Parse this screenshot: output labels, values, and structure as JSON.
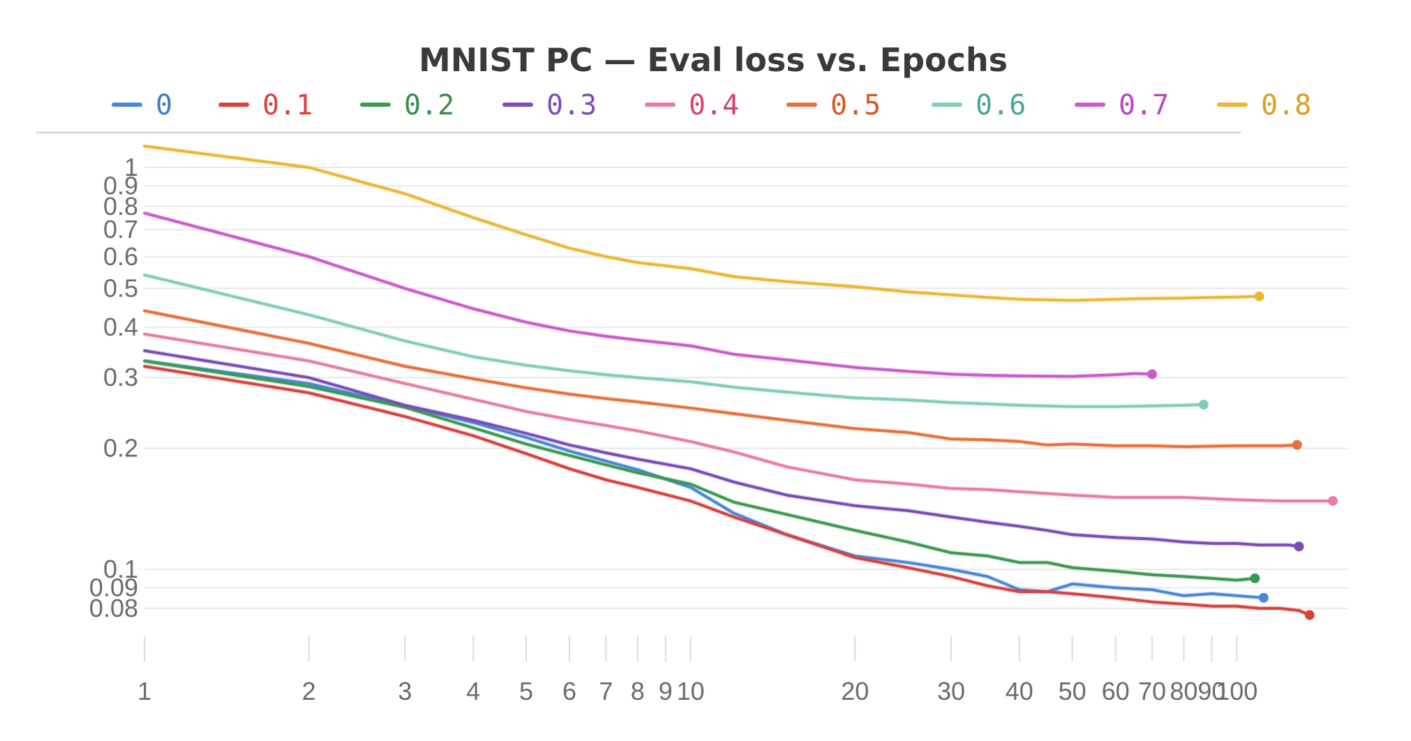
{
  "chart_data": {
    "type": "line",
    "title": "MNIST PC — Eval loss vs. Epochs",
    "xlabel": "",
    "ylabel": "",
    "x_scale": "log",
    "y_scale": "log",
    "xlim": [
      1,
      160
    ],
    "ylim": [
      0.066,
      1.15
    ],
    "legend_position": "top",
    "grid": true,
    "x_ticks": [
      {
        "value": 1,
        "label": "1"
      },
      {
        "value": 2,
        "label": "2"
      },
      {
        "value": 3,
        "label": "3"
      },
      {
        "value": 4,
        "label": "4"
      },
      {
        "value": 5,
        "label": "5"
      },
      {
        "value": 6,
        "label": "6"
      },
      {
        "value": 7,
        "label": "7"
      },
      {
        "value": 8,
        "label": "8"
      },
      {
        "value": 9,
        "label": "9"
      },
      {
        "value": 10,
        "label": "10"
      },
      {
        "value": 20,
        "label": "20"
      },
      {
        "value": 30,
        "label": "30"
      },
      {
        "value": 40,
        "label": "40"
      },
      {
        "value": 50,
        "label": "50"
      },
      {
        "value": 60,
        "label": "60"
      },
      {
        "value": 70,
        "label": "70"
      },
      {
        "value": 80,
        "label": "80"
      },
      {
        "value": 90,
        "label": "90"
      },
      {
        "value": 100,
        "label": "100"
      }
    ],
    "y_ticks": [
      {
        "value": 0.08,
        "label": "0.08"
      },
      {
        "value": 0.09,
        "label": "0.09"
      },
      {
        "value": 0.1,
        "label": "0.1"
      },
      {
        "value": 0.2,
        "label": "0.2"
      },
      {
        "value": 0.3,
        "label": "0.3"
      },
      {
        "value": 0.4,
        "label": "0.4"
      },
      {
        "value": 0.5,
        "label": "0.5"
      },
      {
        "value": 0.6,
        "label": "0.6"
      },
      {
        "value": 0.7,
        "label": "0.7"
      },
      {
        "value": 0.8,
        "label": "0.8"
      },
      {
        "value": 0.9,
        "label": "0.9"
      },
      {
        "value": 1,
        "label": "1"
      }
    ],
    "series": [
      {
        "name": "0",
        "color": "#4a86d9",
        "label_color": "#3f7ad0",
        "points": [
          [
            1,
            0.33
          ],
          [
            2,
            0.29
          ],
          [
            3,
            0.255
          ],
          [
            4,
            0.232
          ],
          [
            5,
            0.213
          ],
          [
            6,
            0.197
          ],
          [
            7,
            0.186
          ],
          [
            8,
            0.177
          ],
          [
            10,
            0.16
          ],
          [
            12,
            0.138
          ],
          [
            15,
            0.122
          ],
          [
            20,
            0.108
          ],
          [
            25,
            0.104
          ],
          [
            30,
            0.1
          ],
          [
            35,
            0.096
          ],
          [
            40,
            0.089
          ],
          [
            45,
            0.088
          ],
          [
            50,
            0.092
          ],
          [
            60,
            0.09
          ],
          [
            70,
            0.089
          ],
          [
            80,
            0.086
          ],
          [
            90,
            0.087
          ],
          [
            100,
            0.086
          ],
          [
            112,
            0.085
          ]
        ]
      },
      {
        "name": "0.1",
        "color": "#d9413f",
        "label_color": "#d9413f",
        "points": [
          [
            1,
            0.32
          ],
          [
            2,
            0.275
          ],
          [
            3,
            0.24
          ],
          [
            4,
            0.215
          ],
          [
            5,
            0.194
          ],
          [
            6,
            0.178
          ],
          [
            7,
            0.167
          ],
          [
            8,
            0.16
          ],
          [
            10,
            0.148
          ],
          [
            12,
            0.135
          ],
          [
            15,
            0.122
          ],
          [
            20,
            0.107
          ],
          [
            25,
            0.101
          ],
          [
            30,
            0.096
          ],
          [
            35,
            0.091
          ],
          [
            40,
            0.088
          ],
          [
            45,
            0.088
          ],
          [
            50,
            0.087
          ],
          [
            60,
            0.085
          ],
          [
            70,
            0.083
          ],
          [
            80,
            0.082
          ],
          [
            90,
            0.081
          ],
          [
            100,
            0.081
          ],
          [
            110,
            0.08
          ],
          [
            120,
            0.08
          ],
          [
            130,
            0.079
          ],
          [
            136,
            0.077
          ]
        ]
      },
      {
        "name": "0.2",
        "color": "#3a9a52",
        "label_color": "#3a8a4c",
        "points": [
          [
            1,
            0.33
          ],
          [
            2,
            0.285
          ],
          [
            3,
            0.253
          ],
          [
            4,
            0.225
          ],
          [
            5,
            0.205
          ],
          [
            6,
            0.192
          ],
          [
            7,
            0.182
          ],
          [
            8,
            0.174
          ],
          [
            10,
            0.163
          ],
          [
            12,
            0.147
          ],
          [
            15,
            0.137
          ],
          [
            20,
            0.125
          ],
          [
            25,
            0.117
          ],
          [
            30,
            0.11
          ],
          [
            35,
            0.108
          ],
          [
            40,
            0.104
          ],
          [
            45,
            0.104
          ],
          [
            50,
            0.101
          ],
          [
            60,
            0.099
          ],
          [
            70,
            0.097
          ],
          [
            80,
            0.096
          ],
          [
            90,
            0.095
          ],
          [
            100,
            0.094
          ],
          [
            108,
            0.095
          ]
        ]
      },
      {
        "name": "0.3",
        "color": "#7b4cb8",
        "label_color": "#7b4cb8",
        "points": [
          [
            1,
            0.35
          ],
          [
            2,
            0.3
          ],
          [
            3,
            0.256
          ],
          [
            4,
            0.235
          ],
          [
            5,
            0.218
          ],
          [
            6,
            0.204
          ],
          [
            7,
            0.195
          ],
          [
            8,
            0.188
          ],
          [
            10,
            0.178
          ],
          [
            12,
            0.165
          ],
          [
            15,
            0.153
          ],
          [
            20,
            0.144
          ],
          [
            25,
            0.14
          ],
          [
            30,
            0.135
          ],
          [
            35,
            0.131
          ],
          [
            40,
            0.128
          ],
          [
            45,
            0.125
          ],
          [
            50,
            0.122
          ],
          [
            60,
            0.12
          ],
          [
            70,
            0.119
          ],
          [
            80,
            0.117
          ],
          [
            90,
            0.116
          ],
          [
            100,
            0.116
          ],
          [
            110,
            0.115
          ],
          [
            125,
            0.115
          ],
          [
            130,
            0.114
          ]
        ]
      },
      {
        "name": "0.4",
        "color": "#e87da0",
        "label_color": "#d6416b",
        "points": [
          [
            1,
            0.385
          ],
          [
            2,
            0.33
          ],
          [
            3,
            0.29
          ],
          [
            4,
            0.265
          ],
          [
            5,
            0.247
          ],
          [
            6,
            0.236
          ],
          [
            7,
            0.228
          ],
          [
            8,
            0.221
          ],
          [
            10,
            0.208
          ],
          [
            12,
            0.196
          ],
          [
            15,
            0.18
          ],
          [
            20,
            0.167
          ],
          [
            25,
            0.163
          ],
          [
            30,
            0.159
          ],
          [
            35,
            0.158
          ],
          [
            40,
            0.156
          ],
          [
            50,
            0.153
          ],
          [
            60,
            0.151
          ],
          [
            70,
            0.151
          ],
          [
            80,
            0.151
          ],
          [
            100,
            0.149
          ],
          [
            120,
            0.148
          ],
          [
            140,
            0.148
          ],
          [
            150,
            0.148
          ]
        ]
      },
      {
        "name": "0.5",
        "color": "#e8703a",
        "label_color": "#d35a1f",
        "points": [
          [
            1,
            0.44
          ],
          [
            2,
            0.365
          ],
          [
            3,
            0.32
          ],
          [
            4,
            0.298
          ],
          [
            5,
            0.283
          ],
          [
            6,
            0.273
          ],
          [
            7,
            0.266
          ],
          [
            8,
            0.261
          ],
          [
            10,
            0.252
          ],
          [
            12,
            0.244
          ],
          [
            15,
            0.235
          ],
          [
            20,
            0.224
          ],
          [
            25,
            0.219
          ],
          [
            30,
            0.211
          ],
          [
            35,
            0.21
          ],
          [
            40,
            0.208
          ],
          [
            45,
            0.204
          ],
          [
            50,
            0.205
          ],
          [
            60,
            0.203
          ],
          [
            70,
            0.203
          ],
          [
            80,
            0.202
          ],
          [
            100,
            0.203
          ],
          [
            120,
            0.203
          ],
          [
            129,
            0.204
          ]
        ]
      },
      {
        "name": "0.6",
        "color": "#82cdb9",
        "label_color": "#4aa58f",
        "points": [
          [
            1,
            0.54
          ],
          [
            2,
            0.43
          ],
          [
            3,
            0.37
          ],
          [
            4,
            0.338
          ],
          [
            5,
            0.322
          ],
          [
            6,
            0.312
          ],
          [
            7,
            0.305
          ],
          [
            8,
            0.3
          ],
          [
            10,
            0.293
          ],
          [
            12,
            0.284
          ],
          [
            15,
            0.276
          ],
          [
            20,
            0.267
          ],
          [
            25,
            0.264
          ],
          [
            30,
            0.26
          ],
          [
            35,
            0.258
          ],
          [
            40,
            0.256
          ],
          [
            50,
            0.254
          ],
          [
            60,
            0.254
          ],
          [
            70,
            0.255
          ],
          [
            80,
            0.256
          ],
          [
            87,
            0.257
          ]
        ]
      },
      {
        "name": "0.7",
        "color": "#c95ccc",
        "label_color": "#bb45be",
        "points": [
          [
            1,
            0.77
          ],
          [
            2,
            0.6
          ],
          [
            3,
            0.5
          ],
          [
            4,
            0.445
          ],
          [
            5,
            0.412
          ],
          [
            6,
            0.392
          ],
          [
            7,
            0.38
          ],
          [
            8,
            0.372
          ],
          [
            10,
            0.36
          ],
          [
            12,
            0.343
          ],
          [
            15,
            0.332
          ],
          [
            20,
            0.318
          ],
          [
            25,
            0.311
          ],
          [
            30,
            0.306
          ],
          [
            35,
            0.304
          ],
          [
            40,
            0.303
          ],
          [
            50,
            0.302
          ],
          [
            60,
            0.305
          ],
          [
            65,
            0.307
          ],
          [
            70,
            0.306
          ]
        ]
      },
      {
        "name": "0.8",
        "color": "#ecb731",
        "label_color": "#d9a020",
        "points": [
          [
            1,
            1.13
          ],
          [
            2,
            1.0
          ],
          [
            3,
            0.86
          ],
          [
            4,
            0.75
          ],
          [
            5,
            0.68
          ],
          [
            6,
            0.63
          ],
          [
            7,
            0.6
          ],
          [
            8,
            0.58
          ],
          [
            10,
            0.56
          ],
          [
            12,
            0.535
          ],
          [
            15,
            0.52
          ],
          [
            20,
            0.505
          ],
          [
            25,
            0.49
          ],
          [
            30,
            0.482
          ],
          [
            35,
            0.475
          ],
          [
            40,
            0.47
          ],
          [
            50,
            0.467
          ],
          [
            60,
            0.47
          ],
          [
            70,
            0.472
          ],
          [
            80,
            0.473
          ],
          [
            90,
            0.475
          ],
          [
            100,
            0.476
          ],
          [
            110,
            0.478
          ]
        ]
      }
    ]
  }
}
